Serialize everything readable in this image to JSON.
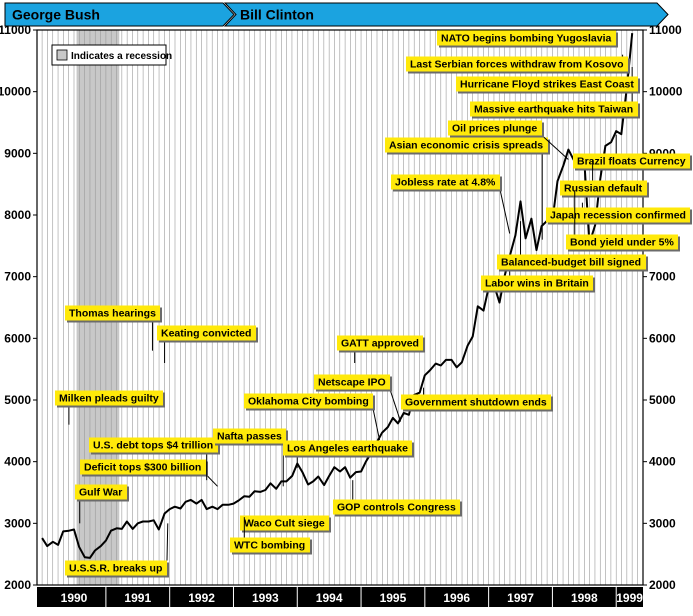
{
  "chart_data": {
    "type": "line",
    "title": "",
    "xlabel": "",
    "ylabel": "",
    "ylim": [
      2000,
      11000
    ],
    "xlim": [
      1989.92,
      1999.42
    ],
    "y_ticks": [
      2000,
      3000,
      4000,
      5000,
      6000,
      7000,
      8000,
      9000,
      10000,
      11000
    ],
    "x_ticks": [
      {
        "label": "1990",
        "value": 1990.5
      },
      {
        "label": "1991",
        "value": 1991.5
      },
      {
        "label": "1992",
        "value": 1992.5
      },
      {
        "label": "1993",
        "value": 1993.5
      },
      {
        "label": "1994",
        "value": 1994.5
      },
      {
        "label": "1995",
        "value": 1995.5
      },
      {
        "label": "1996",
        "value": 1996.5
      },
      {
        "label": "1997",
        "value": 1997.5
      },
      {
        "label": "1998",
        "value": 1998.5
      },
      {
        "label": "1999",
        "value": 1999.5
      }
    ],
    "grid": "vertical monthly",
    "colors": {
      "banner": "#1ba3e0",
      "annotation_fill": "#ffe90a",
      "recession_shade": "#c8c8c8",
      "line": "#000000",
      "year_bar": "#000000"
    },
    "administrations": [
      {
        "label": "George Bush",
        "start": 1989.92,
        "end": 1993.04
      },
      {
        "label": "Bill Clinton",
        "start": 1993.04,
        "end": 1999.42
      }
    ],
    "recession": {
      "start": 1990.54,
      "end": 1991.21,
      "legend": "Indicates a recession"
    },
    "series": [
      {
        "x": [
          1990.0,
          1990.08,
          1990.17,
          1990.25,
          1990.33,
          1990.42,
          1990.5,
          1990.58,
          1990.67,
          1990.75,
          1990.83,
          1990.92,
          1991.0,
          1991.08,
          1991.17,
          1991.25,
          1991.33,
          1991.42,
          1991.5,
          1991.58,
          1991.67,
          1991.75,
          1991.83,
          1991.92,
          1992.0,
          1992.08,
          1992.17,
          1992.25,
          1992.33,
          1992.42,
          1992.5,
          1992.58,
          1992.67,
          1992.75,
          1992.83,
          1992.92,
          1993.0,
          1993.08,
          1993.17,
          1993.25,
          1993.33,
          1993.42,
          1993.5,
          1993.58,
          1993.67,
          1993.75,
          1993.83,
          1993.92,
          1994.0,
          1994.08,
          1994.17,
          1994.25,
          1994.33,
          1994.42,
          1994.5,
          1994.58,
          1994.67,
          1994.75,
          1994.83,
          1994.92,
          1995.0,
          1995.08,
          1995.17,
          1995.25,
          1995.33,
          1995.42,
          1995.5,
          1995.58,
          1995.67,
          1995.75,
          1995.83,
          1995.92,
          1996.0,
          1996.08,
          1996.17,
          1996.25,
          1996.33,
          1996.42,
          1996.5,
          1996.58,
          1996.67,
          1996.75,
          1996.83,
          1996.92,
          1997.0,
          1997.08,
          1997.17,
          1997.25,
          1997.33,
          1997.42,
          1997.5,
          1997.58,
          1997.67,
          1997.75,
          1997.83,
          1997.92,
          1998.0,
          1998.08,
          1998.17,
          1998.25,
          1998.33,
          1998.42,
          1998.5,
          1998.58,
          1998.67,
          1998.75,
          1998.83,
          1998.92,
          1999.0,
          1999.08,
          1999.17,
          1999.25
        ],
        "y": [
          2760,
          2630,
          2700,
          2650,
          2870,
          2880,
          2900,
          2620,
          2450,
          2440,
          2560,
          2630,
          2720,
          2880,
          2920,
          2910,
          3030,
          2910,
          3000,
          3030,
          3030,
          3050,
          2900,
          3160,
          3230,
          3270,
          3240,
          3350,
          3380,
          3320,
          3380,
          3230,
          3270,
          3230,
          3300,
          3300,
          3320,
          3370,
          3440,
          3430,
          3520,
          3510,
          3540,
          3650,
          3560,
          3680,
          3680,
          3770,
          3970,
          3830,
          3630,
          3680,
          3760,
          3620,
          3770,
          3910,
          3840,
          3910,
          3740,
          3830,
          3840,
          4010,
          4160,
          4320,
          4470,
          4560,
          4710,
          4620,
          4790,
          4760,
          5080,
          5120,
          5400,
          5480,
          5590,
          5560,
          5650,
          5650,
          5530,
          5610,
          5880,
          6030,
          6520,
          6450,
          6820,
          6880,
          6580,
          7010,
          7330,
          7670,
          8220,
          7620,
          7940,
          7430,
          7820,
          7910,
          7910,
          8550,
          8800,
          9060,
          8900,
          8950,
          8880,
          7540,
          7840,
          8590,
          9120,
          9180,
          9360,
          9310,
          10100,
          10950
        ]
      }
    ],
    "annotations": [
      {
        "text": "U.S.S.R. breaks up",
        "x": 1991.97,
        "y": 3000
      },
      {
        "text": "Gulf War",
        "x": 1990.59,
        "y": 3000
      },
      {
        "text": "Milken pleads guilty",
        "x": 1990.42,
        "y": 4600
      },
      {
        "text": "Thomas hearings",
        "x": 1991.73,
        "y": 5800
      },
      {
        "text": "Keating convicted",
        "x": 1991.92,
        "y": 5600
      },
      {
        "text": "Deficit tops $300 billion",
        "x": 1992.75,
        "y": 3600
      },
      {
        "text": "U.S. debt tops $4 trillion",
        "x": 1992.58,
        "y": 3700
      },
      {
        "text": "Nafta passes",
        "x": 1993.78,
        "y": 3600
      },
      {
        "text": "Waco Cult siege",
        "x": 1993.17,
        "y": 3100
      },
      {
        "text": "WTC bombing",
        "x": 1993.17,
        "y": 3100
      },
      {
        "text": "Los Angeles earthquake",
        "x": 1994.0,
        "y": 3900
      },
      {
        "text": "GOP controls Congress",
        "x": 1994.87,
        "y": 3700
      },
      {
        "text": "Oklahoma City bombing",
        "x": 1995.29,
        "y": 4350
      },
      {
        "text": "Netscape IPO",
        "x": 1995.62,
        "y": 4650
      },
      {
        "text": "GATT approved",
        "x": 1994.9,
        "y": 5600
      },
      {
        "text": "Government shutdown ends",
        "x": 1995.98,
        "y": 5200
      },
      {
        "text": "Jobless rate at 4.8%",
        "x": 1997.33,
        "y": 7700
      },
      {
        "text": "Asian economic crisis spreads",
        "x": 1997.84,
        "y": 7600
      },
      {
        "text": "Oil prices plunge",
        "x": 1998.25,
        "y": 8900
      },
      {
        "text": "Labor wins in Britain",
        "x": 1997.33,
        "y": 7200
      },
      {
        "text": "Balanced-budget bill signed",
        "x": 1997.5,
        "y": 7900
      },
      {
        "text": "Massive earthquake hits Taiwan",
        "x": 1999.25,
        "y": 10200
      },
      {
        "text": "Hurricane Floyd strikes East Coast",
        "x": 1999.25,
        "y": 10400
      },
      {
        "text": "Last Serbian forces withdraw from Kosovo",
        "x": 1999.1,
        "y": 10600
      },
      {
        "text": "NATO begins bombing Yugoslavia",
        "x": 1999.02,
        "y": 10800
      },
      {
        "text": "Brazil floats Currency",
        "x": 1999.0,
        "y": 9300
      },
      {
        "text": "Russian default",
        "x": 1998.63,
        "y": 8900
      },
      {
        "text": "Japan recession confirmed",
        "x": 1998.47,
        "y": 8200
      },
      {
        "text": "Bond yield under 5%",
        "x": 1998.35,
        "y": 8400
      }
    ]
  }
}
